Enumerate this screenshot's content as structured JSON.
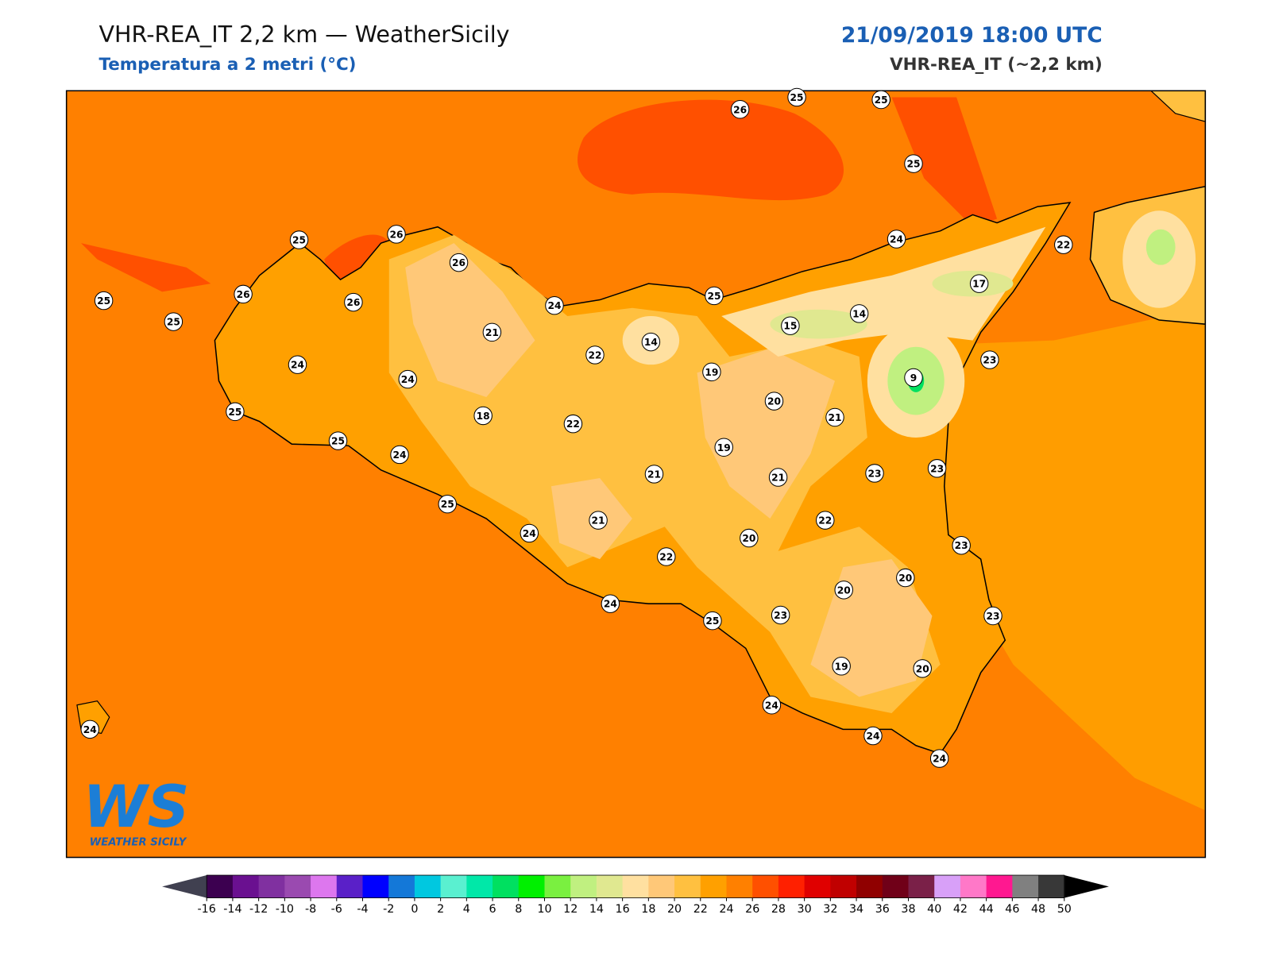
{
  "header": {
    "title": "VHR-REA_IT 2,2 km — WeatherSicily",
    "subtitle": "Temperatura a 2 metri (°C)",
    "datetime": "21/09/2019 18:00 UTC",
    "model": "VHR-REA_IT (~2,2 km)"
  },
  "stations": [
    26,
    25,
    25,
    25,
    24,
    22,
    17,
    14,
    15,
    25,
    14,
    19,
    23,
    9,
    20,
    21,
    19,
    21,
    23,
    23,
    22,
    20,
    23,
    20,
    20,
    23,
    23,
    19,
    20,
    24,
    24,
    24,
    25,
    24,
    22,
    21,
    24,
    21,
    22,
    22,
    24,
    21,
    18,
    26,
    26,
    25,
    26,
    26,
    24,
    24,
    24,
    25,
    25,
    25,
    25,
    25,
    24
  ],
  "colorbar": {
    "ticks": [
      -16,
      -14,
      -12,
      -10,
      -8,
      -6,
      -4,
      -2,
      0,
      2,
      4,
      6,
      8,
      10,
      12,
      14,
      16,
      18,
      20,
      22,
      24,
      26,
      28,
      30,
      32,
      34,
      36,
      38,
      40,
      42,
      44,
      46,
      48,
      50
    ],
    "colors": [
      "#3c0050",
      "#6a1090",
      "#8030a0",
      "#9a4ab0",
      "#dd77ee",
      "#5a20c8",
      "#0000ff",
      "#1478d8",
      "#00c8e0",
      "#5af0d0",
      "#00e8a8",
      "#00e060",
      "#00f000",
      "#7af040",
      "#c0f080",
      "#e0e890",
      "#ffe0a0",
      "#ffc878",
      "#ffc040",
      "#ffa000",
      "#ff8000",
      "#ff5000",
      "#ff2000",
      "#e00000",
      "#c00000",
      "#900000",
      "#700018",
      "#7a2048",
      "#d8a0f8",
      "#ff78c8",
      "#ff1890",
      "#808080",
      "#383838"
    ],
    "under_color": "#404050",
    "over_color": "#000000"
  },
  "logo": {
    "mark": "WS",
    "text": "WEATHER SICILY"
  }
}
